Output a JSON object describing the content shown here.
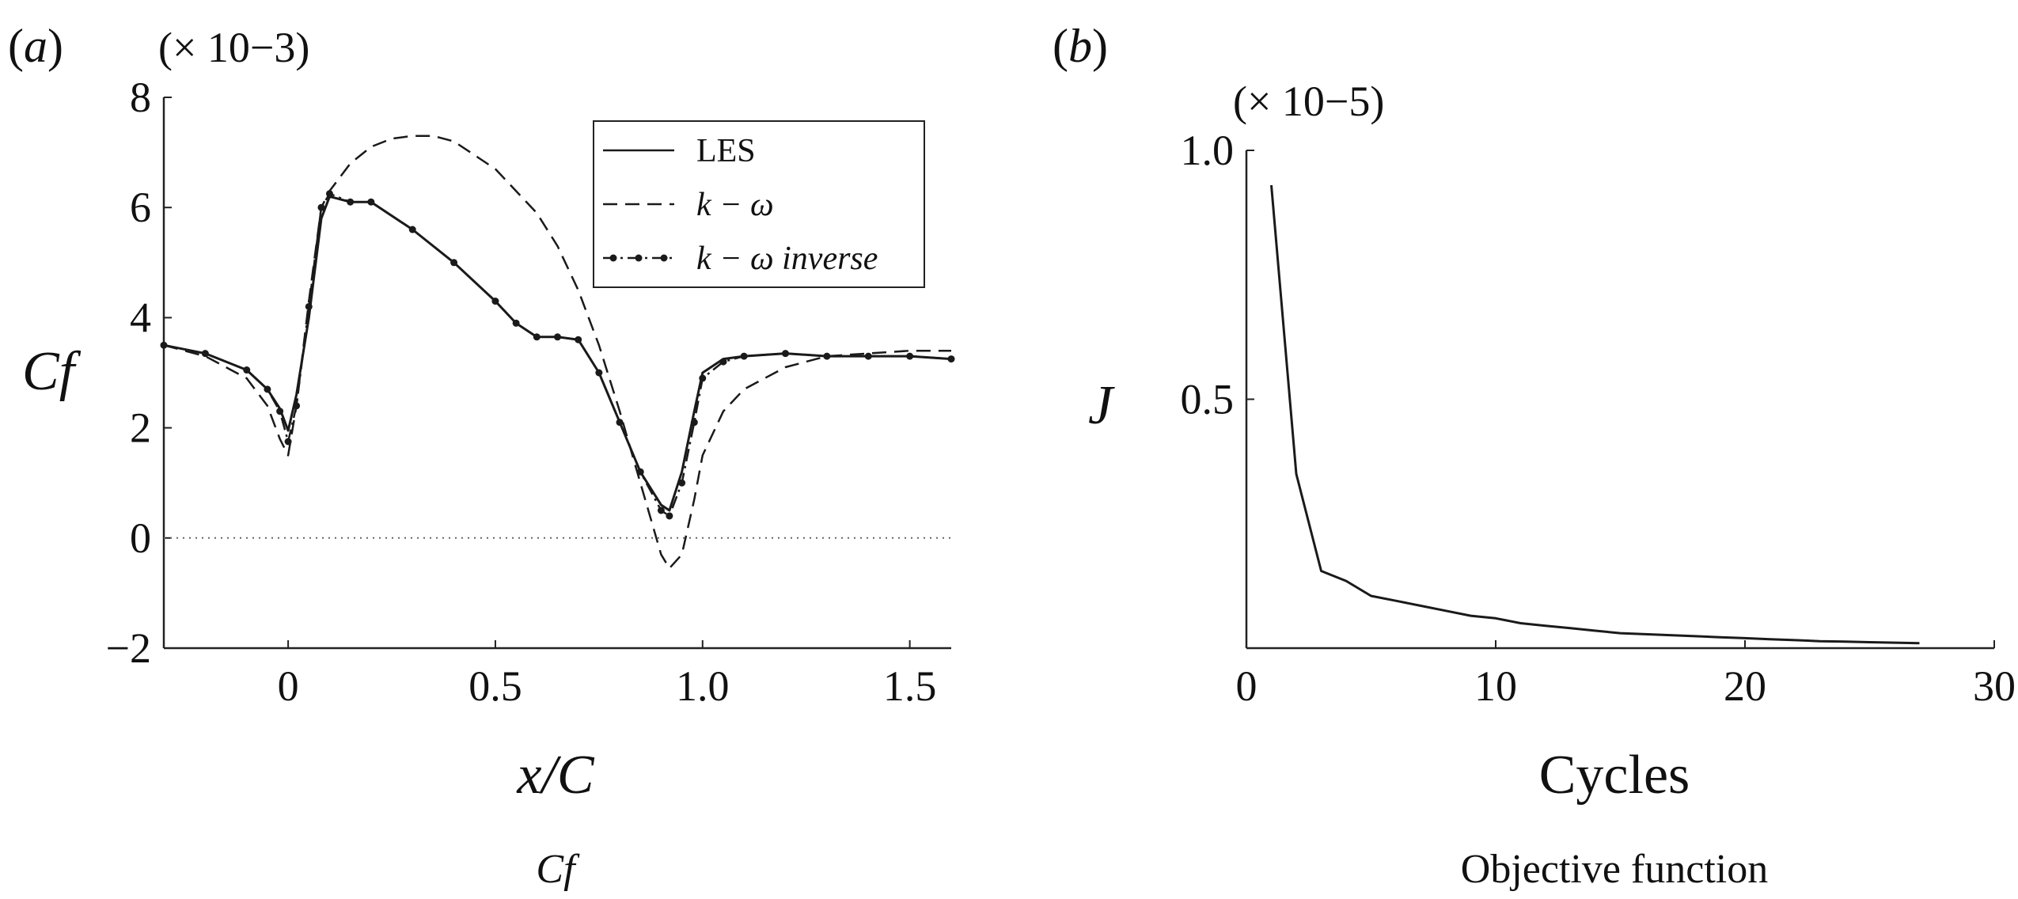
{
  "figure": {
    "panels": [
      {
        "letter": "a",
        "caption": "Cf",
        "y_multiplier": "(× 10−3)"
      },
      {
        "letter": "b",
        "caption": "Objective function",
        "y_multiplier": "(× 10−5)"
      }
    ]
  },
  "chart_data": [
    {
      "type": "line",
      "title": "",
      "xlabel": "x/C",
      "ylabel": "Cf",
      "y_scale_note": "× 10^-3",
      "xlim": [
        -0.3,
        1.6
      ],
      "ylim": [
        -2,
        8
      ],
      "xticks": [
        0,
        0.5,
        1.0,
        1.5
      ],
      "xtick_labels": [
        "0",
        "0.5",
        "1.0",
        "1.5"
      ],
      "yticks": [
        -2,
        0,
        2,
        4,
        6,
        8
      ],
      "ytick_labels": [
        "−2",
        "0",
        "2",
        "4",
        "6",
        "8"
      ],
      "grid": false,
      "reference_line": {
        "y": 0,
        "style": "dotted"
      },
      "legend": {
        "position": "top-right",
        "entries": [
          "LES",
          "k − ω",
          "k − ω inverse"
        ]
      },
      "series": [
        {
          "name": "LES",
          "style": "solid",
          "x": [
            -0.3,
            -0.2,
            -0.1,
            -0.05,
            -0.02,
            0.0,
            0.02,
            0.05,
            0.08,
            0.1,
            0.15,
            0.2,
            0.3,
            0.4,
            0.5,
            0.55,
            0.6,
            0.65,
            0.7,
            0.75,
            0.8,
            0.85,
            0.9,
            0.92,
            0.95,
            0.98,
            1.0,
            1.05,
            1.1,
            1.2,
            1.3,
            1.4,
            1.5,
            1.6
          ],
          "y": [
            3.5,
            3.35,
            3.05,
            2.7,
            2.35,
            1.95,
            2.6,
            4.0,
            5.8,
            6.2,
            6.1,
            6.1,
            5.6,
            5.0,
            4.3,
            3.9,
            3.65,
            3.65,
            3.6,
            3.0,
            2.1,
            1.2,
            0.6,
            0.5,
            1.2,
            2.3,
            3.0,
            3.25,
            3.3,
            3.35,
            3.3,
            3.3,
            3.3,
            3.25
          ]
        },
        {
          "name": "k − ω",
          "style": "dashed",
          "x": [
            -0.3,
            -0.2,
            -0.1,
            -0.05,
            -0.02,
            0.0,
            0.02,
            0.05,
            0.08,
            0.1,
            0.15,
            0.2,
            0.25,
            0.3,
            0.35,
            0.4,
            0.5,
            0.6,
            0.65,
            0.7,
            0.75,
            0.8,
            0.85,
            0.9,
            0.92,
            0.95,
            0.98,
            1.0,
            1.05,
            1.1,
            1.2,
            1.3,
            1.4,
            1.5,
            1.6
          ],
          "y": [
            3.5,
            3.3,
            2.9,
            2.4,
            1.8,
            1.5,
            2.4,
            4.3,
            6.0,
            6.3,
            6.8,
            7.1,
            7.25,
            7.3,
            7.3,
            7.2,
            6.7,
            5.9,
            5.3,
            4.5,
            3.5,
            2.3,
            1.0,
            -0.3,
            -0.55,
            -0.3,
            0.7,
            1.5,
            2.3,
            2.7,
            3.1,
            3.3,
            3.35,
            3.4,
            3.4
          ]
        },
        {
          "name": "k − ω inverse",
          "style": "dash-dot-markers",
          "x": [
            -0.3,
            -0.2,
            -0.1,
            -0.05,
            -0.02,
            0.0,
            0.02,
            0.05,
            0.08,
            0.1,
            0.15,
            0.2,
            0.3,
            0.4,
            0.5,
            0.55,
            0.6,
            0.65,
            0.7,
            0.75,
            0.8,
            0.85,
            0.9,
            0.92,
            0.95,
            0.98,
            1.0,
            1.05,
            1.1,
            1.2,
            1.3,
            1.4,
            1.5,
            1.6
          ],
          "y": [
            3.5,
            3.35,
            3.05,
            2.7,
            2.3,
            1.75,
            2.4,
            4.2,
            6.0,
            6.25,
            6.1,
            6.1,
            5.6,
            5.0,
            4.3,
            3.9,
            3.65,
            3.65,
            3.6,
            3.0,
            2.1,
            1.2,
            0.5,
            0.4,
            1.0,
            2.1,
            2.9,
            3.2,
            3.3,
            3.35,
            3.3,
            3.3,
            3.3,
            3.25
          ]
        }
      ]
    },
    {
      "type": "line",
      "title": "",
      "xlabel": "Cycles",
      "ylabel": "J",
      "y_scale_note": "× 10^-5",
      "xlim": [
        0,
        30
      ],
      "ylim": [
        0,
        1.0
      ],
      "xticks": [
        0,
        10,
        20,
        30
      ],
      "xtick_labels": [
        "0",
        "10",
        "20",
        "30"
      ],
      "yticks": [
        0.5,
        1.0
      ],
      "ytick_labels": [
        "0.5",
        "1.0"
      ],
      "grid": false,
      "series": [
        {
          "name": "",
          "style": "solid",
          "x": [
            1,
            2,
            3,
            4,
            5,
            6,
            7,
            8,
            9,
            10,
            11,
            12,
            13,
            14,
            15,
            16,
            17,
            18,
            19,
            20,
            21,
            22,
            23,
            24,
            25,
            26,
            27
          ],
          "y": [
            0.93,
            0.35,
            0.155,
            0.135,
            0.105,
            0.095,
            0.085,
            0.075,
            0.065,
            0.06,
            0.05,
            0.045,
            0.04,
            0.035,
            0.03,
            0.028,
            0.026,
            0.024,
            0.022,
            0.02,
            0.018,
            0.016,
            0.014,
            0.013,
            0.012,
            0.011,
            0.01
          ]
        }
      ]
    }
  ]
}
